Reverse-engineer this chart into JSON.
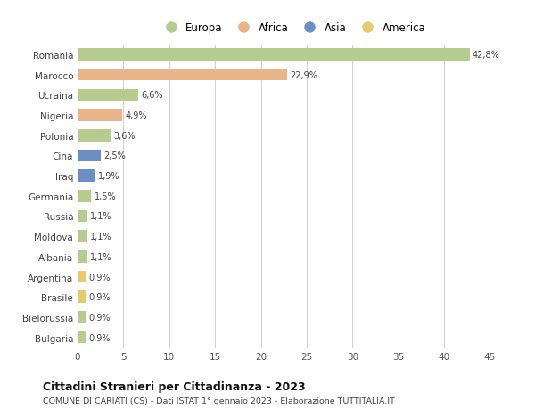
{
  "categories": [
    "Romania",
    "Marocco",
    "Ucraina",
    "Nigeria",
    "Polonia",
    "Cina",
    "Iraq",
    "Germania",
    "Russia",
    "Moldova",
    "Albania",
    "Argentina",
    "Brasile",
    "Bielorussia",
    "Bulgaria"
  ],
  "values": [
    42.8,
    22.9,
    6.6,
    4.9,
    3.6,
    2.5,
    1.9,
    1.5,
    1.1,
    1.1,
    1.1,
    0.9,
    0.9,
    0.9,
    0.9
  ],
  "labels": [
    "42,8%",
    "22,9%",
    "6,6%",
    "4,9%",
    "3,6%",
    "2,5%",
    "1,9%",
    "1,5%",
    "1,1%",
    "1,1%",
    "1,1%",
    "0,9%",
    "0,9%",
    "0,9%",
    "0,9%"
  ],
  "continents": [
    "Europa",
    "Africa",
    "Europa",
    "Africa",
    "Europa",
    "Asia",
    "Asia",
    "Europa",
    "Europa",
    "Europa",
    "Europa",
    "America",
    "America",
    "Europa",
    "Europa"
  ],
  "colors": {
    "Europa": "#b5cc8e",
    "Africa": "#e8b48a",
    "Asia": "#6b8fc4",
    "America": "#e8c96e"
  },
  "legend_order": [
    "Europa",
    "Africa",
    "Asia",
    "America"
  ],
  "xlim": [
    0,
    47
  ],
  "xticks": [
    0,
    5,
    10,
    15,
    20,
    25,
    30,
    35,
    40,
    45
  ],
  "title": "Cittadini Stranieri per Cittadinanza - 2023",
  "subtitle": "COMUNE DI CARIATI (CS) - Dati ISTAT 1° gennaio 2023 - Elaborazione TUTTITALIA.IT",
  "background_color": "#ffffff",
  "grid_color": "#d0d0d0",
  "bar_height": 0.6
}
